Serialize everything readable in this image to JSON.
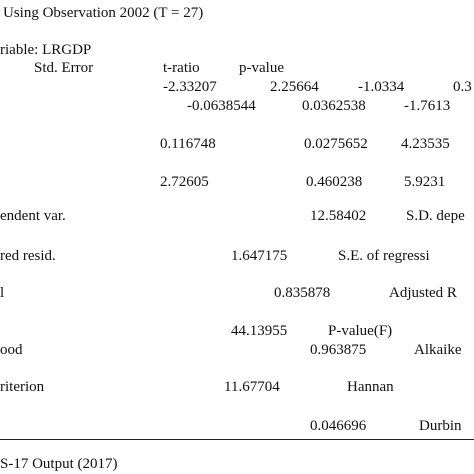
{
  "header": {
    "observation": "Using Observation 2002 (T = 27)",
    "variable": "riable: LRGDP"
  },
  "columns": {
    "std_error": "Std. Error",
    "t_ratio": "t-ratio",
    "p_value": "p-value"
  },
  "coefficients": {
    "row1": [
      "-2.33207",
      "2.25664",
      "-1.0334",
      "0.3"
    ],
    "row2": [
      "-0.0638544",
      "0.0362538",
      "-1.7613"
    ],
    "row3": [
      "0.116748",
      "0.0275652",
      "4.23535"
    ],
    "row4": [
      "2.72605",
      "0.460238",
      "5.9231"
    ]
  },
  "stats": {
    "row1": [
      "endent var.",
      "12.58402",
      "S.D. depe"
    ],
    "row2": [
      "red resid.",
      "1.647175",
      "S.E. of regressi"
    ],
    "row3": [
      "l",
      "0.835878",
      "Adjusted R"
    ],
    "row4": [
      "44.13955",
      "P-value(F)"
    ],
    "row5": [
      "ood",
      "0.963875",
      "Alkaike"
    ],
    "row6": [
      "riterion",
      "11.67704",
      "Hannan"
    ],
    "row7": [
      "0.046696",
      "Durbin"
    ]
  },
  "footer": {
    "source": "S-17 Output (2017)"
  }
}
